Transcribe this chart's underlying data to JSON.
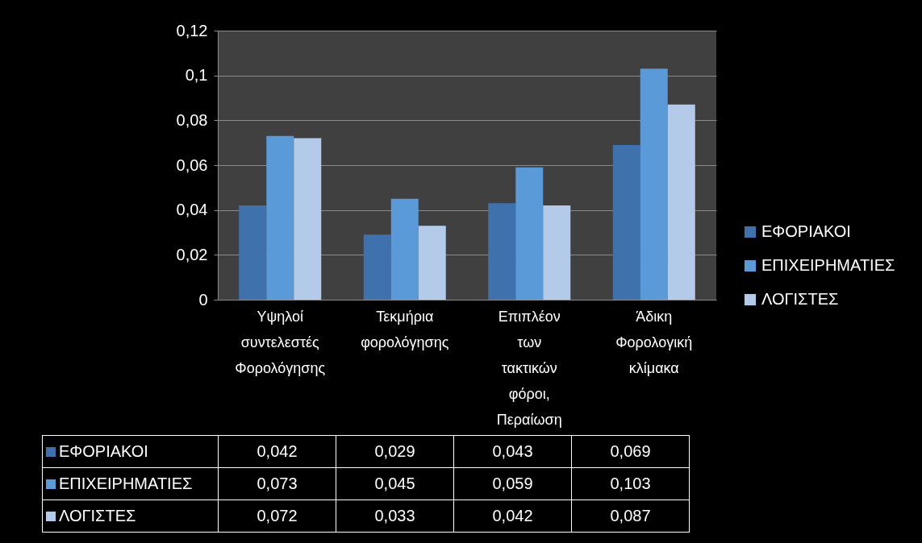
{
  "chart_data": {
    "type": "bar",
    "categories": [
      "Υψηλοί συντελεστές Φορολόγησης",
      "Τεκμήρια φορολόγησης",
      "Επιπλέον των τακτικών φόροι, Περαίωση",
      "Άδικη Φορολογική κλίμακα"
    ],
    "series": [
      {
        "name": "ΕΦΟΡΙΑΚΟΙ",
        "color": "#3f72ad",
        "values": [
          0.042,
          0.029,
          0.043,
          0.069
        ],
        "value_labels": [
          "0,042",
          "0,029",
          "0,043",
          "0,069"
        ]
      },
      {
        "name": "ΕΠΙΧΕΙΡΗΜΑΤΙΕΣ",
        "color": "#5b9ad8",
        "values": [
          0.073,
          0.045,
          0.059,
          0.103
        ],
        "value_labels": [
          "0,073",
          "0,045",
          "0,059",
          "0,103"
        ]
      },
      {
        "name": "ΛΟΓΙΣΤΕΣ",
        "color": "#b3cbe8",
        "values": [
          0.072,
          0.033,
          0.042,
          0.087
        ],
        "value_labels": [
          "0,072",
          "0,033",
          "0,042",
          "0,087"
        ]
      }
    ],
    "ylim": [
      0,
      0.12
    ],
    "yticks": [
      {
        "value": 0,
        "label": "0"
      },
      {
        "value": 0.02,
        "label": "0,02"
      },
      {
        "value": 0.04,
        "label": "0,04"
      },
      {
        "value": 0.06,
        "label": "0,06"
      },
      {
        "value": 0.08,
        "label": "0,08"
      },
      {
        "value": 0.1,
        "label": "0,1"
      },
      {
        "value": 0.12,
        "label": "0,12"
      }
    ],
    "grid": "y",
    "legend": "right"
  }
}
